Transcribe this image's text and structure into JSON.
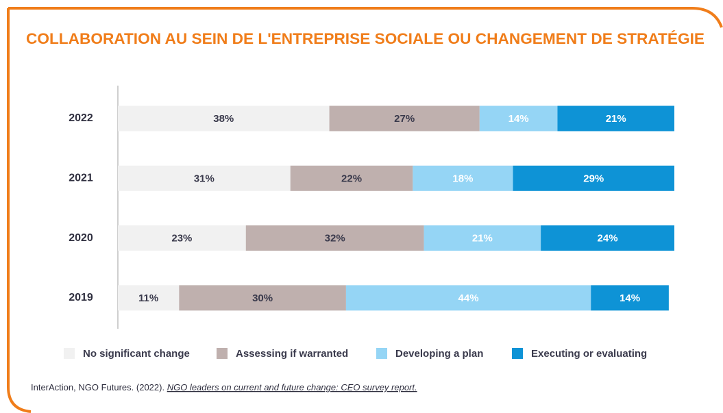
{
  "chart_data": {
    "type": "stacked-bar-horizontal",
    "title": "COLLABORATION AU SEIN DE L'ENTREPRISE SOCIALE OU CHANGEMENT DE STRATÉGIE",
    "categories": [
      "2022",
      "2021",
      "2020",
      "2019"
    ],
    "xlim": [
      0,
      100
    ],
    "series": [
      {
        "name": "No significant change",
        "color": "#f1f1f1",
        "label_color": "#3a3a4c",
        "values": [
          38,
          31,
          23,
          11
        ],
        "value_labels": [
          "38%",
          "31%",
          "23%",
          "11%"
        ]
      },
      {
        "name": "Assessing if warranted",
        "color": "#bfb0ae",
        "label_color": "#3a3a4c",
        "values": [
          27,
          22,
          32,
          30
        ],
        "value_labels": [
          "27%",
          "22%",
          "32%",
          "30%"
        ]
      },
      {
        "name": "Developing a plan",
        "color": "#95d5f5",
        "label_color": "#ffffff",
        "values": [
          14,
          18,
          21,
          44
        ],
        "value_labels": [
          "14%",
          "18%",
          "21%",
          "44%"
        ]
      },
      {
        "name": "Executing or evaluating",
        "color": "#0e93d6",
        "label_color": "#ffffff",
        "values": [
          21,
          29,
          24,
          14
        ],
        "value_labels": [
          "21%",
          "29%",
          "24%",
          "14%"
        ]
      }
    ],
    "legend": "bottom",
    "source": {
      "text": "InterAction, NGO Futures. (2022). ",
      "link": "NGO leaders on current and future change: CEO survey report."
    }
  }
}
